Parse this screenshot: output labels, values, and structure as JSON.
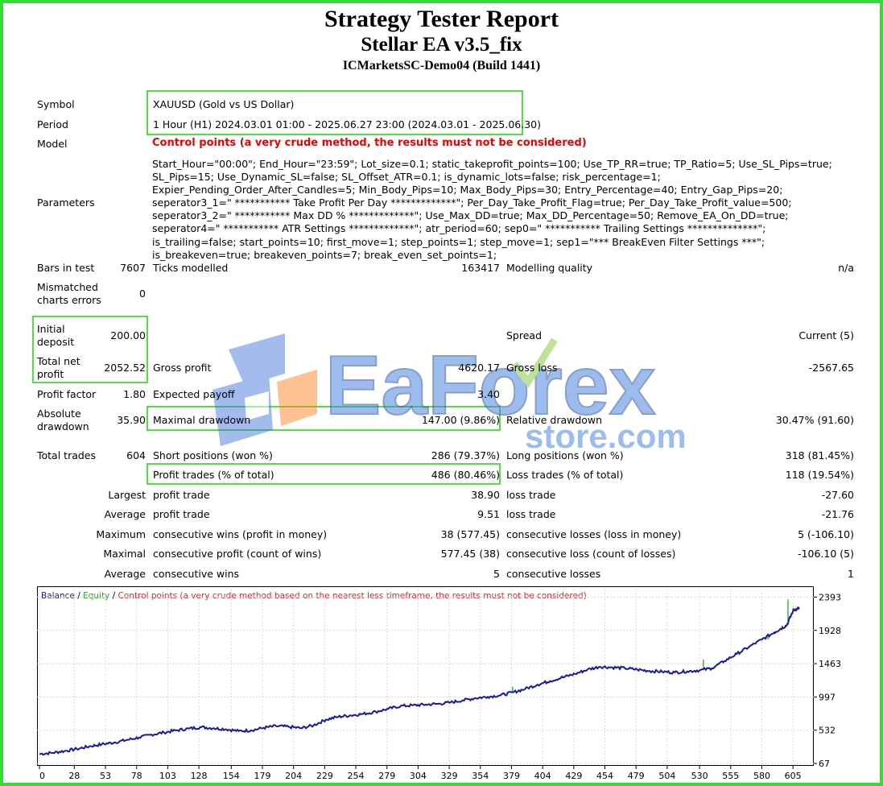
{
  "header": {
    "title": "Strategy Tester Report",
    "ea_name": "Stellar EA v3.5_fix",
    "server": "ICMarketsSC-Demo04 (Build 1441)"
  },
  "report": {
    "symbol_label": "Symbol",
    "symbol_value": "XAUUSD (Gold vs US Dollar)",
    "period_label": "Period",
    "period_value": "1 Hour (H1) 2024.03.01 01:00 - 2025.06.27 23:00 (2024.03.01 - 2025.06.30)",
    "model_label": "Model",
    "model_value": "Control points (a very crude method, the results must not be considered)",
    "parameters_label": "Parameters",
    "parameters_value": "Start_Hour=\"00:00\"; End_Hour=\"23:59\"; Lot_size=0.1; static_takeprofit_points=100; Use_TP_RR=true; TP_Ratio=5; Use_SL_Pips=true; SL_Pips=15; Use_Dynamic_SL=false; SL_Offset_ATR=0.1; is_dynamic_lots=false; risk_percentage=1; Expier_Pending_Order_After_Candles=5; Min_Body_Pips=10; Max_Body_Pips=30; Entry_Percentage=40; Entry_Gap_Pips=20; seperator3_1=\" *********** Take Profit Per Day *************\"; Per_Day_Take_Profit_Flag=true; Per_Day_Take_Profit_value=500; seperator3_2=\" *********** Max DD % *************\"; Use_Max_DD=true; Max_DD_Percentage=50; Remove_EA_On_DD=true; seperator4=\" *********** ATR Settings *************\"; atr_period=60; sep0=\" *********** Trailing Settings **************\"; is_trailing=false; start_points=10; first_move=1; step_points=1; step_move=1; sep1=\"*** BreakEven Filter Settings ***\"; is_breakeven=true; breakeven_points=7; break_even_set_points=1;",
    "bars_label": "Bars in test",
    "bars_value": "7607",
    "ticks_label": "Ticks modelled",
    "ticks_value": "163417",
    "quality_label": "Modelling quality",
    "quality_value": "n/a",
    "mismatch_label_1": "Mismatched",
    "mismatch_label_2": "charts errors",
    "mismatch_value": "0",
    "deposit_label_1": "Initial",
    "deposit_label_2": "deposit",
    "deposit_value": "200.00",
    "spread_label": "Spread",
    "spread_value": "Current (5)",
    "netprofit_label_1": "Total net",
    "netprofit_label_2": "profit",
    "netprofit_value": "2052.52",
    "grossprofit_label": "Gross profit",
    "grossprofit_value": "4620.17",
    "grossloss_label": "Gross loss",
    "grossloss_value": "-2567.65",
    "pf_label": "Profit factor",
    "pf_value": "1.80",
    "payoff_label": "Expected payoff",
    "payoff_value": "3.40",
    "absdd_label_1": "Absolute",
    "absdd_label_2": "drawdown",
    "absdd_value": "35.90",
    "maxdd_label": "Maximal drawdown",
    "maxdd_value": "147.00 (9.86%)",
    "reldd_label": "Relative drawdown",
    "reldd_value": "30.47% (91.60)",
    "trades_label": "Total trades",
    "trades_value": "604",
    "short_label": "Short positions (won %)",
    "short_value": "286 (79.37%)",
    "long_label": "Long positions (won %)",
    "long_value": "318 (81.45%)",
    "ptrades_label": "Profit trades (% of total)",
    "ptrades_value": "486 (80.46%)",
    "ltrades_label": "Loss trades (% of total)",
    "ltrades_value": "118 (19.54%)",
    "largest_label": "Largest",
    "largest_p_label": "profit trade",
    "largest_p_value": "38.90",
    "largest_l_label": "loss trade",
    "largest_l_value": "-27.60",
    "average_label": "Average",
    "average_p_label": "profit trade",
    "average_p_value": "9.51",
    "average_l_label": "loss trade",
    "average_l_value": "-21.76",
    "maximum_label": "Maximum",
    "maxwins_label": "consecutive wins (profit in money)",
    "maxwins_value": "38 (577.45)",
    "maxlosses_label": "consecutive losses (loss in money)",
    "maxlosses_value": "5 (-106.10)",
    "maximal_label": "Maximal",
    "maxprofit_label": "consecutive profit (count of wins)",
    "maxprofit_value": "577.45 (38)",
    "maxloss_label": "consecutive loss (count of losses)",
    "maxloss_value": "-106.10 (5)",
    "average2_label": "Average",
    "avgwins_label": "consecutive wins",
    "avgwins_value": "5",
    "avglosses_label": "consecutive losses",
    "avglosses_value": "1"
  },
  "watermark": {
    "brand_a": "EaForex",
    "brand_b": "store.com"
  },
  "chart_data": {
    "type": "line",
    "legend": {
      "balance": "Balance",
      "sep1": " / ",
      "equity": "Equity",
      "sep2": " / ",
      "control": "Control points (a very crude method based on the nearest less timeframe, the results must not be considered)"
    },
    "colors": {
      "balance": "#1a1aa0",
      "equity": "#22aa22",
      "control": "#ee2222",
      "axis": "#000000"
    },
    "x_ticks": [
      0,
      28,
      53,
      78,
      103,
      128,
      154,
      179,
      204,
      229,
      254,
      279,
      304,
      329,
      354,
      379,
      404,
      429,
      454,
      479,
      504,
      530,
      555,
      580,
      605
    ],
    "y_ticks": [
      67,
      532,
      997,
      1463,
      1928,
      2393
    ],
    "xlim": [
      0,
      612
    ],
    "ylim": [
      67,
      2500
    ],
    "balance": [
      [
        0,
        200
      ],
      [
        10,
        215
      ],
      [
        20,
        240
      ],
      [
        30,
        270
      ],
      [
        40,
        305
      ],
      [
        50,
        335
      ],
      [
        60,
        360
      ],
      [
        70,
        395
      ],
      [
        80,
        430
      ],
      [
        90,
        470
      ],
      [
        100,
        500
      ],
      [
        110,
        530
      ],
      [
        120,
        555
      ],
      [
        130,
        575
      ],
      [
        140,
        560
      ],
      [
        150,
        545
      ],
      [
        160,
        520
      ],
      [
        170,
        530
      ],
      [
        180,
        565
      ],
      [
        190,
        590
      ],
      [
        200,
        580
      ],
      [
        210,
        560
      ],
      [
        220,
        600
      ],
      [
        230,
        680
      ],
      [
        240,
        720
      ],
      [
        250,
        740
      ],
      [
        260,
        760
      ],
      [
        270,
        790
      ],
      [
        280,
        830
      ],
      [
        290,
        870
      ],
      [
        300,
        880
      ],
      [
        310,
        890
      ],
      [
        320,
        900
      ],
      [
        330,
        920
      ],
      [
        340,
        950
      ],
      [
        350,
        980
      ],
      [
        360,
        1000
      ],
      [
        370,
        1020
      ],
      [
        380,
        1060
      ],
      [
        390,
        1110
      ],
      [
        400,
        1170
      ],
      [
        410,
        1220
      ],
      [
        420,
        1270
      ],
      [
        430,
        1320
      ],
      [
        440,
        1380
      ],
      [
        450,
        1420
      ],
      [
        460,
        1410
      ],
      [
        470,
        1400
      ],
      [
        480,
        1380
      ],
      [
        490,
        1360
      ],
      [
        500,
        1350
      ],
      [
        510,
        1340
      ],
      [
        520,
        1355
      ],
      [
        530,
        1370
      ],
      [
        540,
        1400
      ],
      [
        550,
        1500
      ],
      [
        560,
        1600
      ],
      [
        570,
        1700
      ],
      [
        580,
        1800
      ],
      [
        590,
        1900
      ],
      [
        595,
        1950
      ],
      [
        600,
        2000
      ],
      [
        605,
        2200
      ],
      [
        610,
        2252
      ]
    ],
    "equity_spikes": [
      [
        380,
        1140
      ],
      [
        420,
        1300
      ],
      [
        533,
        1520
      ],
      [
        585,
        1880
      ],
      [
        601,
        2360
      ],
      [
        605,
        2240
      ]
    ]
  }
}
